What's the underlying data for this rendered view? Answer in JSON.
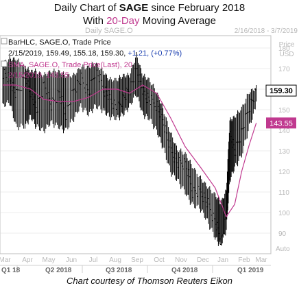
{
  "header": {
    "title_pre": "Daily Chart of ",
    "title_bold": "SAGE",
    "title_post": " since February 2018",
    "subtitle_pre": "With ",
    "subtitle_accent": "20-Day",
    "subtitle_post": " Moving Average"
  },
  "chart_header": {
    "name": "Daily SAGE.O",
    "date_range": "2/16/2018 - 3/7/2019",
    "currency": "Price\nUSD"
  },
  "legend": {
    "bar_label": "BarHLC, SAGE.O, Trade Price",
    "bar_values": "2/15/2019, 159.49, 155.18, 159.30, ",
    "bar_change": "+1.21, (+0.77%)",
    "sma_label": "SMA, SAGE.O, Trade Price(Last), 20",
    "sma_values": "2/15/2019, 143.55"
  },
  "price_tags": {
    "last": "159.30",
    "sma": "143.55"
  },
  "axis": {
    "y_ticks": [
      "180",
      "170",
      "160",
      "150",
      "140",
      "130",
      "120",
      "110",
      "100",
      "90"
    ],
    "y_auto": "Auto",
    "months": [
      "Mar",
      "Apr",
      "May",
      "Jun",
      "Jul",
      "Aug",
      "Sep",
      "Oct",
      "Nov",
      "Dec",
      "Jan",
      "Feb",
      "Mar"
    ],
    "quarters": [
      "Q1 18",
      "Q2 2018",
      "Q3 2018",
      "Q4 2018",
      "Q1 2019"
    ]
  },
  "caption": "Chart courtesy of Thomson Reuters Eikon",
  "colors": {
    "price": "#000000",
    "sma": "#c0398f",
    "last_tag": "#ffffff",
    "sma_tag": "#c0398f",
    "change": "#1b3fb0",
    "grid": "#dcdcdc"
  },
  "chart_data": {
    "type": "line",
    "ylim": [
      80,
      186
    ],
    "price_path_dates": [
      "2018-02-16",
      "2018-02-26",
      "2018-03-07",
      "2018-03-20",
      "2018-03-28",
      "2018-04-05",
      "2018-04-16",
      "2018-04-26",
      "2018-05-07",
      "2018-05-17",
      "2018-05-29",
      "2018-06-08",
      "2018-06-19",
      "2018-06-29",
      "2018-07-10",
      "2018-07-19",
      "2018-07-30",
      "2018-08-08",
      "2018-08-17",
      "2018-08-27",
      "2018-09-05",
      "2018-09-14",
      "2018-09-25",
      "2018-10-04",
      "2018-10-15",
      "2018-10-25",
      "2018-11-05",
      "2018-11-15",
      "2018-11-27",
      "2018-12-07",
      "2018-12-18",
      "2018-12-26",
      "2019-01-03",
      "2019-01-08",
      "2019-01-15",
      "2019-01-25",
      "2019-02-05",
      "2019-02-15"
    ],
    "price_path": [
      168,
      164,
      157,
      166,
      158,
      150,
      162,
      152,
      158,
      148,
      160,
      165,
      158,
      170,
      160,
      156,
      150,
      156,
      160,
      170,
      158,
      155,
      152,
      144,
      130,
      124,
      124,
      110,
      110,
      104,
      95,
      86,
      100,
      138,
      130,
      140,
      152,
      159.3
    ],
    "high_low": [
      [
        174,
        150
      ],
      [
        176,
        152
      ],
      [
        176,
        140
      ],
      [
        172,
        140
      ],
      [
        170,
        145
      ],
      [
        170,
        140
      ],
      [
        168,
        138
      ],
      [
        170,
        142
      ],
      [
        170,
        140
      ],
      [
        168,
        138
      ],
      [
        168,
        144
      ],
      [
        172,
        150
      ],
      [
        172,
        146
      ],
      [
        174,
        150
      ],
      [
        170,
        148
      ],
      [
        166,
        145
      ],
      [
        166,
        144
      ],
      [
        168,
        146
      ],
      [
        168,
        150
      ],
      [
        178,
        156
      ],
      [
        168,
        146
      ],
      [
        166,
        144
      ],
      [
        160,
        138
      ],
      [
        152,
        130
      ],
      [
        140,
        118
      ],
      [
        132,
        114
      ],
      [
        130,
        108
      ],
      [
        124,
        102
      ],
      [
        118,
        100
      ],
      [
        114,
        94
      ],
      [
        110,
        86
      ],
      [
        106,
        82
      ],
      [
        112,
        90
      ],
      [
        146,
        114
      ],
      [
        148,
        120
      ],
      [
        152,
        126
      ],
      [
        160,
        140
      ],
      [
        162,
        150
      ]
    ],
    "sma_path_dates": [
      "2018-02-16",
      "2018-03-07",
      "2018-03-28",
      "2018-04-16",
      "2018-05-07",
      "2018-05-29",
      "2018-06-19",
      "2018-07-10",
      "2018-07-30",
      "2018-08-17",
      "2018-09-05",
      "2018-09-25",
      "2018-10-15",
      "2018-11-05",
      "2018-11-27",
      "2018-12-18",
      "2019-01-03",
      "2019-01-15",
      "2019-01-25",
      "2019-02-05",
      "2019-02-15"
    ],
    "sma": [
      162,
      162,
      160,
      155,
      154,
      154,
      156,
      160,
      160,
      158,
      162,
      158,
      146,
      132,
      122,
      112,
      98,
      104,
      120,
      133,
      143.55
    ],
    "last": {
      "date": "2019-02-15",
      "open": 159.49,
      "low": 155.18,
      "close": 159.3,
      "change": 1.21,
      "change_pct": 0.77
    },
    "sma_last": 143.55
  }
}
